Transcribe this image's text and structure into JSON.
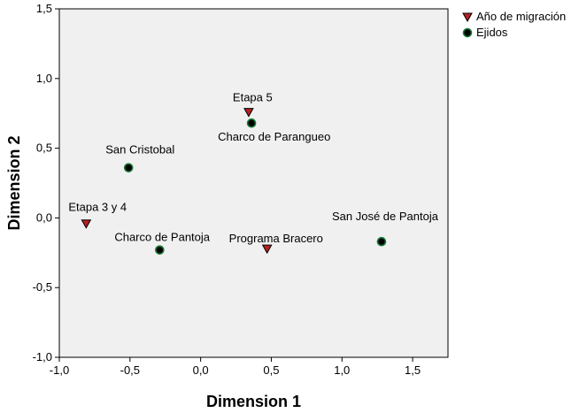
{
  "chart_data": {
    "type": "scatter",
    "xlabel": "Dimension 1",
    "ylabel": "Dimension 2",
    "xlim": [
      -1.0,
      1.75
    ],
    "ylim": [
      -1.0,
      1.5
    ],
    "xticks": [
      -1.0,
      -0.5,
      0.0,
      0.5,
      1.0,
      1.5
    ],
    "yticks": [
      -1.0,
      -0.5,
      0.0,
      0.5,
      1.0,
      1.5
    ],
    "xtick_labels": [
      "-1,0",
      "-0,5",
      "0,0",
      "0,5",
      "1,0",
      "1,5"
    ],
    "ytick_labels": [
      "-1,0",
      "-0,5",
      "0,0",
      "0,5",
      "1,0",
      "1,5"
    ],
    "grid": false,
    "legend_position": "top-right-outside",
    "series": [
      {
        "name": "Año de migración",
        "marker": "triangle-down",
        "color": "#b22222",
        "points": [
          {
            "label": "Etapa 5",
            "x": 0.34,
            "y": 0.76
          },
          {
            "label": "Etapa 3 y 4",
            "x": -0.81,
            "y": -0.04
          },
          {
            "label": "Programa Bracero",
            "x": 0.47,
            "y": -0.22
          }
        ]
      },
      {
        "name": "Ejidos",
        "marker": "circle",
        "color": "#1a7a3a",
        "points": [
          {
            "label": "Charco de Parangueo",
            "x": 0.36,
            "y": 0.68
          },
          {
            "label": "San Cristobal",
            "x": -0.51,
            "y": 0.36
          },
          {
            "label": "Charco de Pantoja",
            "x": -0.29,
            "y": -0.23
          },
          {
            "label": "San José de Pantoja",
            "x": 1.28,
            "y": -0.17
          }
        ]
      }
    ]
  }
}
